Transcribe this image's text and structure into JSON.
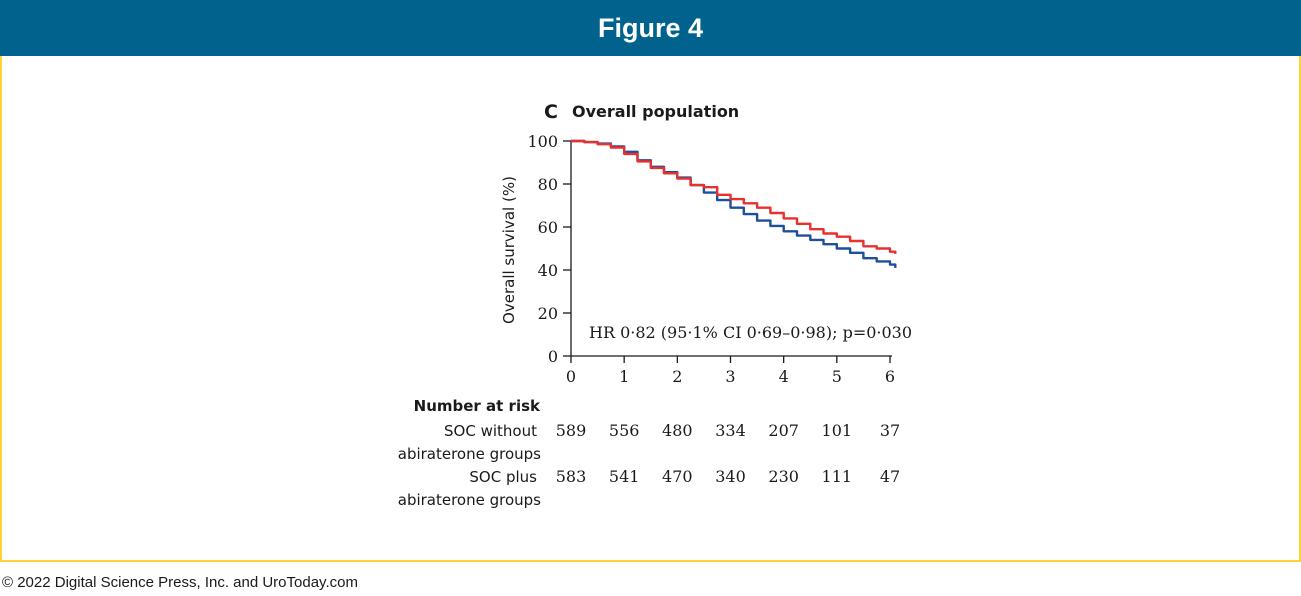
{
  "header": {
    "title": "Figure 4"
  },
  "footer": {
    "copyright": "© 2022 Digital Science Press, Inc. and UroToday.com"
  },
  "colors": {
    "banner": "#00628d",
    "frame": "#fcd535",
    "soc_without": "#1d4f9c",
    "soc_plus": "#e8312f"
  },
  "chart_data": {
    "type": "line",
    "panel_letter": "C",
    "title": "Overall population",
    "xlabel": "",
    "ylabel": "Overall survival (%)",
    "xlim": [
      0,
      6
    ],
    "ylim": [
      0,
      100
    ],
    "x_ticks": [
      "0",
      "1",
      "2",
      "3",
      "4",
      "5",
      "6"
    ],
    "y_ticks": [
      "0",
      "20",
      "40",
      "60",
      "80",
      "100"
    ],
    "annotation": "HR 0·82 (95·1% CI 0·69–0·98); p=0·030",
    "series": [
      {
        "key": "soc_without",
        "color": "#1d4f9c",
        "points": [
          [
            0,
            100
          ],
          [
            0.25,
            99.5
          ],
          [
            0.5,
            98.8
          ],
          [
            0.75,
            97.5
          ],
          [
            1,
            95
          ],
          [
            1.25,
            91
          ],
          [
            1.5,
            88
          ],
          [
            1.75,
            85.5
          ],
          [
            2,
            83
          ],
          [
            2.25,
            79.5
          ],
          [
            2.5,
            76
          ],
          [
            2.75,
            72.5
          ],
          [
            3,
            69
          ],
          [
            3.25,
            66
          ],
          [
            3.5,
            63
          ],
          [
            3.75,
            60.5
          ],
          [
            4,
            58
          ],
          [
            4.25,
            56
          ],
          [
            4.5,
            54
          ],
          [
            4.75,
            52
          ],
          [
            5,
            50
          ],
          [
            5.25,
            48
          ],
          [
            5.5,
            45.5
          ],
          [
            5.75,
            44
          ],
          [
            6,
            42.5
          ],
          [
            6.1,
            41
          ]
        ]
      },
      {
        "key": "soc_plus",
        "color": "#e8312f",
        "points": [
          [
            0,
            100
          ],
          [
            0.25,
            99.5
          ],
          [
            0.5,
            98.5
          ],
          [
            0.75,
            97
          ],
          [
            1,
            94
          ],
          [
            1.25,
            90.5
          ],
          [
            1.5,
            87.5
          ],
          [
            1.75,
            85
          ],
          [
            2,
            82.5
          ],
          [
            2.25,
            79.5
          ],
          [
            2.5,
            78.5
          ],
          [
            2.75,
            75
          ],
          [
            3,
            73
          ],
          [
            3.25,
            71
          ],
          [
            3.5,
            69
          ],
          [
            3.75,
            66.5
          ],
          [
            4,
            64
          ],
          [
            4.25,
            61.5
          ],
          [
            4.5,
            59
          ],
          [
            4.75,
            57
          ],
          [
            5,
            55.5
          ],
          [
            5.25,
            53.5
          ],
          [
            5.5,
            51
          ],
          [
            5.75,
            50
          ],
          [
            6,
            48.5
          ],
          [
            6.1,
            47.5
          ]
        ]
      }
    ],
    "risk_table": {
      "title": "Number at risk",
      "rows": [
        {
          "label_line1": "SOC without",
          "label_line2": "abiraterone groups",
          "values": [
            "589",
            "556",
            "480",
            "334",
            "207",
            "101",
            "37"
          ]
        },
        {
          "label_line1": "SOC plus",
          "label_line2": "abiraterone groups",
          "values": [
            "583",
            "541",
            "470",
            "340",
            "230",
            "111",
            "47"
          ]
        }
      ]
    }
  }
}
